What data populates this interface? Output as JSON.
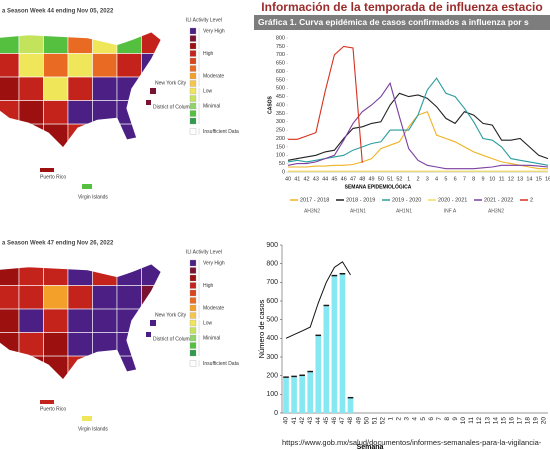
{
  "title": "Información de la temporada de influenza estacio",
  "maps": [
    {
      "title": "a Season Week 44 ending Nov 05, 2022",
      "legend_title": "ILI Activity Level",
      "legend": [
        {
          "label": "Very High",
          "colors": [
            "#4b1f84",
            "#7a1232",
            "#9c1010"
          ]
        },
        {
          "label": "High",
          "colors": [
            "#c3231b",
            "#d9461e",
            "#e96a22"
          ]
        },
        {
          "label": "Moderate",
          "colors": [
            "#f3a02a",
            "#f6c64c"
          ]
        },
        {
          "label": "Low",
          "colors": [
            "#efe65a",
            "#c3e35c"
          ]
        },
        {
          "label": "Minimal",
          "colors": [
            "#8fd36b",
            "#55bf3f",
            "#2f9a4a"
          ]
        },
        {
          "label": "Insufficient Data",
          "colors": [
            "#ffffff"
          ]
        }
      ],
      "labels": [
        "New York City",
        "District of Columbia",
        "Puerto Rico",
        "Virgin Islands"
      ]
    },
    {
      "title": "a Season Week 47 ending Nov 26, 2022",
      "legend_title": "ILI Activity Level",
      "legend": [
        {
          "label": "Very High",
          "colors": [
            "#4b1f84",
            "#7a1232",
            "#9c1010"
          ]
        },
        {
          "label": "High",
          "colors": [
            "#c3231b",
            "#d9461e",
            "#e96a22"
          ]
        },
        {
          "label": "Moderate",
          "colors": [
            "#f3a02a",
            "#f6c64c"
          ]
        },
        {
          "label": "Low",
          "colors": [
            "#efe65a",
            "#c3e35c"
          ]
        },
        {
          "label": "Minimal",
          "colors": [
            "#8fd36b",
            "#55bf3f",
            "#2f9a4a"
          ]
        },
        {
          "label": "Insufficient Data",
          "colors": [
            "#ffffff"
          ]
        }
      ],
      "labels": [
        "New York City",
        "District of Colum",
        "Puerto Rico",
        "Virgin Islands"
      ]
    }
  ],
  "chart_data": [
    {
      "type": "line",
      "title": "Gráfica 1. Curva epidémica de casos confirmados a influenza por s",
      "y_label": "CASOS",
      "x_label": "SEMANA EPIDEMIOLÓGICA",
      "categories": [
        "40",
        "41",
        "42",
        "43",
        "44",
        "45",
        "46",
        "47",
        "48",
        "49",
        "50",
        "51",
        "52",
        "1",
        "2",
        "3",
        "4",
        "5",
        "6",
        "7",
        "8",
        "9",
        "10",
        "11",
        "12",
        "13",
        "14",
        "15",
        "16"
      ],
      "ylim": [
        0,
        800
      ],
      "yticks": [
        0,
        50,
        100,
        150,
        200,
        250,
        300,
        350,
        400,
        450,
        500,
        550,
        600,
        650,
        700,
        750,
        800
      ],
      "grid": false,
      "series": [
        {
          "name": "2017 - 2018",
          "subtype": "AH3N2",
          "color": "#f0b323",
          "values": [
            30,
            30,
            30,
            35,
            35,
            40,
            40,
            45,
            60,
            80,
            140,
            160,
            180,
            270,
            340,
            360,
            220,
            200,
            180,
            150,
            120,
            100,
            80,
            60,
            50,
            40,
            30,
            20,
            20
          ]
        },
        {
          "name": "2018 - 2019",
          "subtype": "AH1N1",
          "color": "#222222",
          "values": [
            70,
            80,
            90,
            100,
            120,
            130,
            200,
            260,
            270,
            290,
            300,
            400,
            470,
            450,
            460,
            440,
            390,
            320,
            290,
            360,
            340,
            290,
            280,
            190,
            190,
            200,
            150,
            100,
            80
          ]
        },
        {
          "name": "2019 - 2020",
          "subtype": "AH1N1",
          "color": "#2a9d9d",
          "values": [
            60,
            70,
            60,
            70,
            80,
            90,
            100,
            130,
            150,
            170,
            180,
            250,
            250,
            250,
            340,
            490,
            560,
            470,
            450,
            380,
            300,
            200,
            190,
            150,
            80,
            70,
            60,
            50,
            40
          ]
        },
        {
          "name": "2020 - 2021",
          "subtype": "INF A",
          "color": "#f2dd5e",
          "values": [
            5,
            5,
            5,
            5,
            5,
            5,
            5,
            5,
            5,
            5,
            5,
            5,
            5,
            5,
            5,
            5,
            5,
            5,
            5,
            5,
            5,
            5,
            5,
            5,
            5,
            5,
            5,
            5,
            5
          ]
        },
        {
          "name": "2021 - 2022",
          "subtype": "AH3N2",
          "color": "#7b3fa0",
          "values": [
            40,
            50,
            50,
            60,
            80,
            100,
            190,
            290,
            360,
            400,
            450,
            530,
            330,
            140,
            70,
            40,
            30,
            20,
            20,
            20,
            20,
            25,
            30,
            40,
            40,
            40,
            40,
            35,
            30
          ]
        },
        {
          "name": "2",
          "color": "#d7301f",
          "values": [
            195,
            195,
            215,
            235,
            480,
            700,
            750,
            740,
            55,
            null,
            null,
            null,
            null,
            null,
            null,
            null,
            null,
            null,
            null,
            null,
            null,
            null,
            null,
            null,
            null,
            null,
            null,
            null,
            null
          ]
        }
      ]
    },
    {
      "type": "bar",
      "y_label": "Número de casos",
      "x_label": "Semana",
      "categories": [
        "40",
        "41",
        "42",
        "43",
        "44",
        "45",
        "46",
        "47",
        "48",
        "49",
        "50",
        "51",
        "52",
        "1",
        "2",
        "3",
        "4",
        "5",
        "6",
        "7",
        "8",
        "9",
        "10",
        "11",
        "12",
        "13",
        "14",
        "15",
        "16",
        "17",
        "18",
        "19",
        "20"
      ],
      "ylim": [
        0,
        900
      ],
      "yticks": [
        0,
        100,
        200,
        300,
        400,
        500,
        600,
        700,
        800,
        900
      ],
      "series": [
        {
          "type": "bar",
          "color": "#86e8f2",
          "values": [
            188,
            192,
            198,
            218,
            412,
            572,
            732,
            742,
            78,
            null,
            null,
            null,
            null,
            null,
            null,
            null,
            null,
            null,
            null,
            null,
            null,
            null,
            null,
            null,
            null,
            null,
            null,
            null,
            null,
            null,
            null,
            null,
            null
          ]
        },
        {
          "type": "bar",
          "color": "#1a1a1a",
          "values": [
            8,
            8,
            8,
            8,
            8,
            8,
            8,
            8,
            8,
            null,
            null,
            null,
            null,
            null,
            null,
            null,
            null,
            null,
            null,
            null,
            null,
            null,
            null,
            null,
            null,
            null,
            null,
            null,
            null,
            null,
            null,
            null,
            null
          ]
        },
        {
          "type": "line",
          "color": "#111111",
          "values": [
            400,
            420,
            440,
            460,
            590,
            700,
            780,
            810,
            740,
            null,
            null,
            null,
            null,
            null,
            null,
            null,
            null,
            null,
            null,
            null,
            null,
            null,
            null,
            null,
            null,
            null,
            null,
            null,
            null,
            null,
            null,
            null,
            null
          ]
        }
      ]
    }
  ],
  "source": "https://www.gob.mx/salud/documentos/informes-semanales-para-la-vigilancia-"
}
